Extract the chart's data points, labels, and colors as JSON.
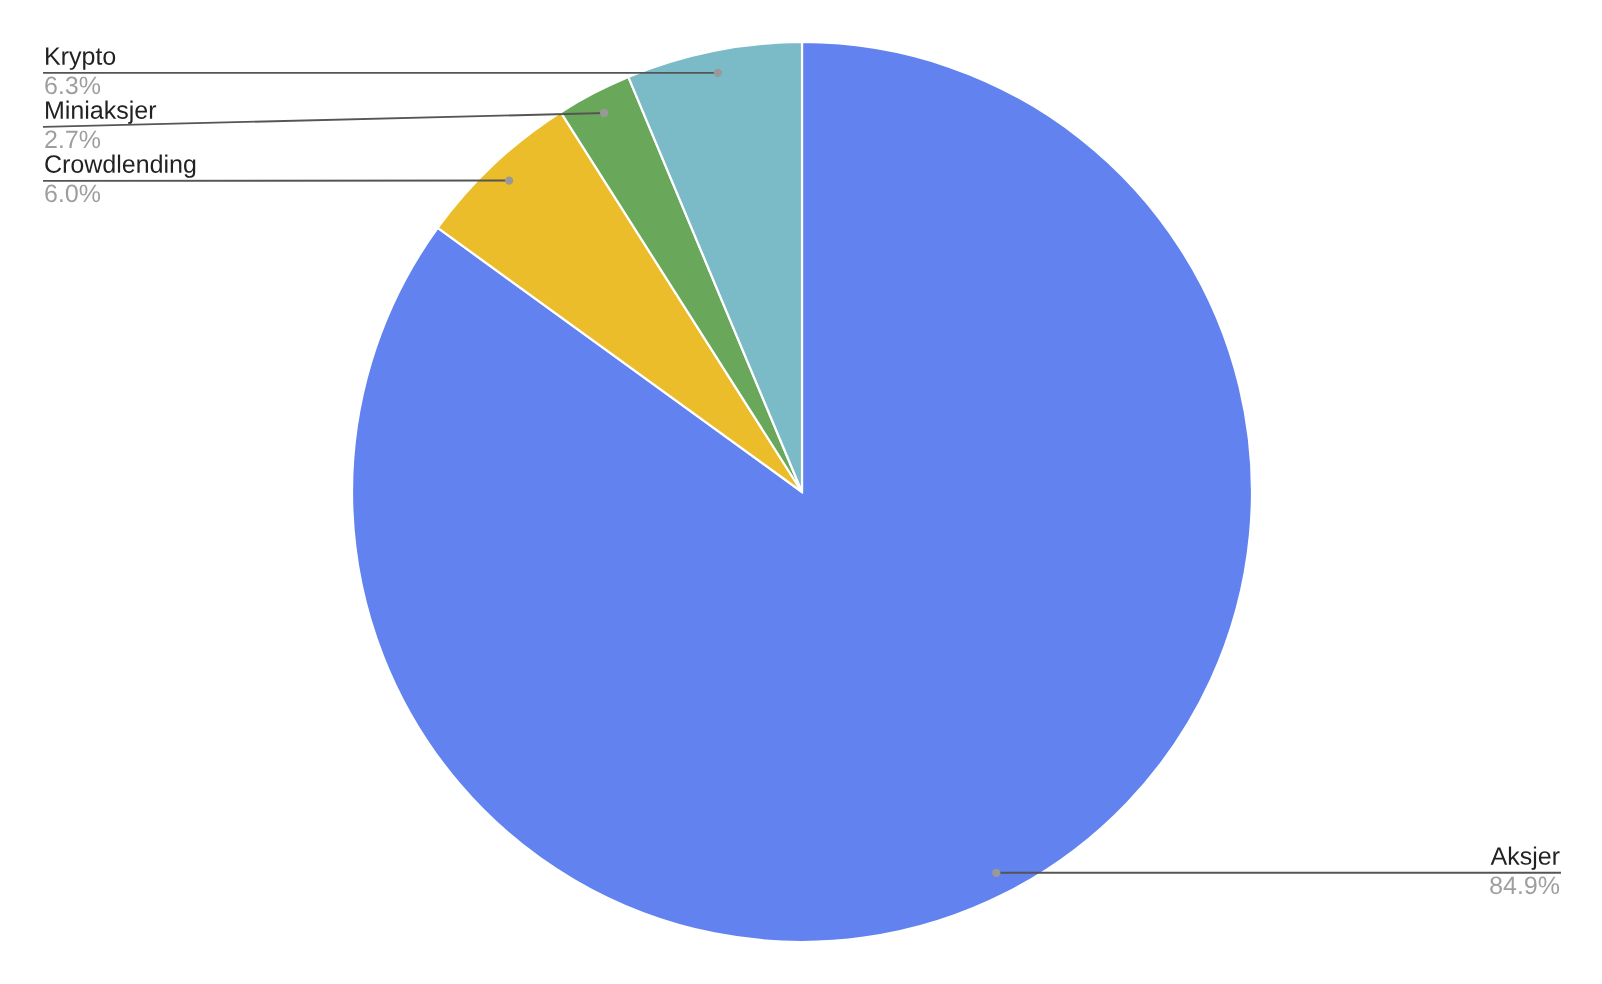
{
  "chart_data": {
    "type": "pie",
    "categories": [
      "Aksjer",
      "Crowdlending",
      "Miniaksjer",
      "Krypto"
    ],
    "values": [
      84.9,
      6.0,
      2.7,
      6.3
    ],
    "colors": [
      "#6182ef",
      "#ebbd2a",
      "#69a85a",
      "#7abbc7"
    ],
    "value_labels": [
      "84.9%",
      "6.0%",
      "2.7%",
      "6.3%"
    ],
    "legend": false
  }
}
